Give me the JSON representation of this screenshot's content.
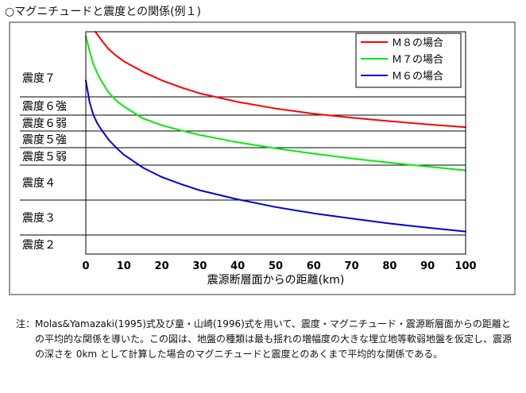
{
  "title": "○マグニチュードと震度との関係(例１)",
  "note": {
    "label": "注：",
    "text": "Molas&Yamazaki(1995)式及び童・山崎(1996)式を用いて、震度・マグニチュード・震源断層面からの距離との平均的な関係を導いた。この図は、地盤の種類は最も揺れの増幅度の大きな埋立地等軟弱地盤を仮定し、震源の深さを 0km として計算した場合のマグニチュードと震度とのあくまで平均的な関係である。"
  },
  "chart_data": {
    "type": "line",
    "title": "",
    "xlabel": "震源断層面からの距離(km)",
    "ylabel": "",
    "xlim": [
      0,
      100
    ],
    "x_ticks": [
      "0",
      "10",
      "20",
      "30",
      "40",
      "50",
      "60",
      "70",
      "80",
      "90",
      "100"
    ],
    "grid": "horizontal lines at intensity class boundaries",
    "intensity_bands": [
      "震度２",
      "震度３",
      "震度４",
      "震度５弱",
      "震度５強",
      "震度６弱",
      "震度６強",
      "震度７"
    ],
    "intensity_boundaries": [
      5.5,
      6.5,
      7.5,
      8.0,
      8.5,
      9.0,
      9.5
    ],
    "ylim": [
      4.5,
      11.0
    ],
    "legend_position": "top-right",
    "series": [
      {
        "name": "Ｍ８の場合",
        "color": "#ff0000",
        "x": [
          2.5,
          4,
          6,
          8,
          10,
          15,
          20,
          25,
          30,
          40,
          50,
          60,
          70,
          80,
          90,
          100
        ],
        "values": [
          11.0,
          10.82,
          10.6,
          10.45,
          10.32,
          10.08,
          9.88,
          9.72,
          9.58,
          9.36,
          9.18,
          9.04,
          8.92,
          8.81,
          8.71,
          8.62
        ]
      },
      {
        "name": "Ｍ７の場合",
        "color": "#00ee00",
        "x": [
          0,
          1,
          2,
          3,
          4,
          6,
          8,
          10,
          15,
          20,
          25,
          30,
          40,
          50,
          60,
          70,
          80,
          90,
          100
        ],
        "values": [
          10.9,
          10.55,
          10.25,
          10.05,
          9.88,
          9.6,
          9.4,
          9.24,
          8.9,
          8.68,
          8.52,
          8.38,
          8.16,
          7.98,
          7.83,
          7.69,
          7.57,
          7.46,
          7.35
        ]
      },
      {
        "name": "Ｍ６の場合",
        "color": "#0000dd",
        "x": [
          0,
          1,
          2,
          3,
          4,
          6,
          8,
          10,
          15,
          20,
          25,
          30,
          40,
          50,
          60,
          70,
          80,
          90,
          100
        ],
        "values": [
          9.88,
          9.35,
          9.0,
          8.75,
          8.56,
          8.24,
          8.0,
          7.8,
          7.43,
          7.16,
          6.96,
          6.78,
          6.52,
          6.3,
          6.12,
          5.97,
          5.83,
          5.71,
          5.6
        ]
      }
    ]
  }
}
